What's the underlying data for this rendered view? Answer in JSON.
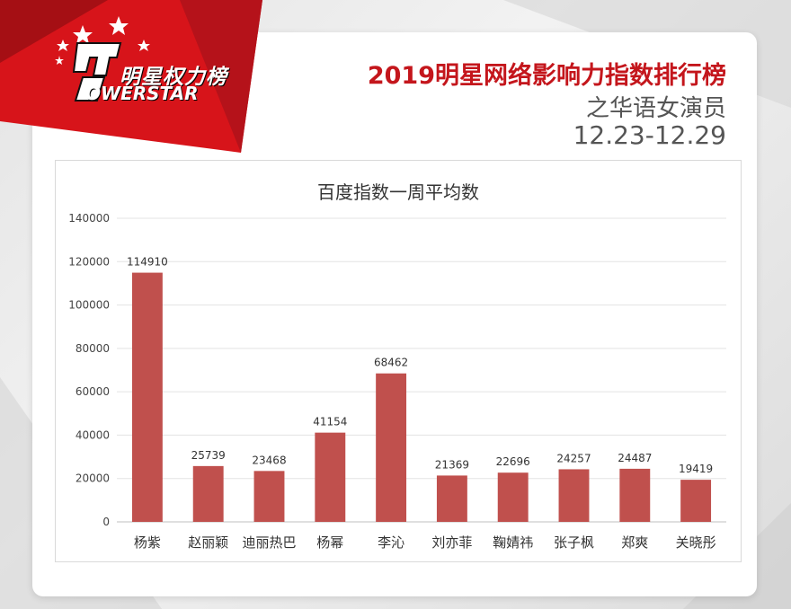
{
  "header": {
    "logo_cn": "明星权力榜",
    "logo_en": "OWERSTAR",
    "title": "2019明星网络影响力指数排行榜",
    "subtitle": "之华语女演员",
    "date_range": "12.23-12.29"
  },
  "colors": {
    "accent": "#c4161c",
    "bar": "#c0504d"
  },
  "chart_data": {
    "type": "bar",
    "title": "百度指数一周平均数",
    "xlabel": "",
    "ylabel": "",
    "categories": [
      "杨紫",
      "赵丽颖",
      "迪丽热巴",
      "杨幂",
      "李沁",
      "刘亦菲",
      "鞠婧祎",
      "张子枫",
      "郑爽",
      "关晓彤"
    ],
    "values": [
      114910,
      25739,
      23468,
      41154,
      68462,
      21369,
      22696,
      24257,
      24487,
      19419
    ],
    "data_labels": [
      "114910",
      "25739",
      "23468",
      "41154",
      "68462",
      "21369",
      "22696",
      "24257",
      "24487",
      "19419"
    ],
    "yticks": [
      "0",
      "20000",
      "40000",
      "60000",
      "80000",
      "100000",
      "120000",
      "140000"
    ],
    "ylim": [
      0,
      140000
    ],
    "grid": true,
    "legend": "none"
  }
}
